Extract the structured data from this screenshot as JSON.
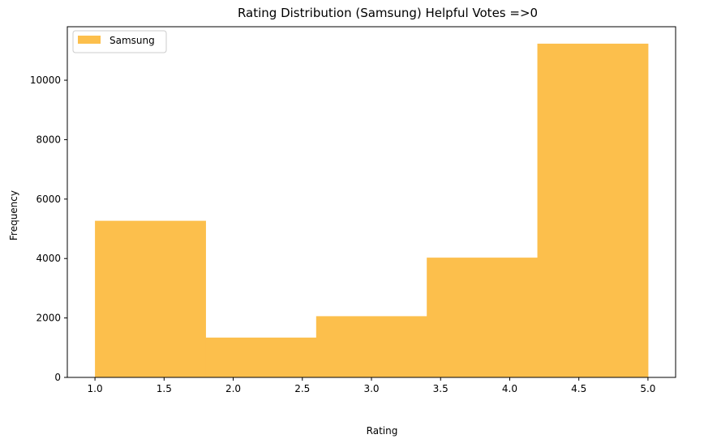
{
  "chart_data": {
    "type": "bar",
    "title": "Rating Distribution (Samsung) Helpful Votes =>0",
    "xlabel": "Rating",
    "ylabel": "Frequency",
    "xlim": [
      0.8,
      5.2
    ],
    "ylim": [
      0,
      11800
    ],
    "xticks": [
      1.0,
      1.5,
      2.0,
      2.5,
      3.0,
      3.5,
      4.0,
      4.5,
      5.0
    ],
    "xtick_labels": [
      "1.0",
      "1.5",
      "2.0",
      "2.5",
      "3.0",
      "3.5",
      "4.0",
      "4.5",
      "5.0"
    ],
    "yticks": [
      0,
      2000,
      4000,
      6000,
      8000,
      10000
    ],
    "ytick_labels": [
      "0",
      "2000",
      "4000",
      "6000",
      "8000",
      "10000"
    ],
    "grid": false,
    "legend_position": "top-left",
    "series": [
      {
        "name": "Samsung",
        "color": "#fcbf4c",
        "bins": [
          {
            "x0": 1.0,
            "x1": 1.8,
            "value": 5270
          },
          {
            "x0": 1.8,
            "x1": 2.6,
            "value": 1340
          },
          {
            "x0": 2.6,
            "x1": 3.4,
            "value": 2060
          },
          {
            "x0": 3.4,
            "x1": 4.2,
            "value": 4030
          },
          {
            "x0": 4.2,
            "x1": 5.0,
            "value": 11230
          }
        ]
      }
    ]
  }
}
